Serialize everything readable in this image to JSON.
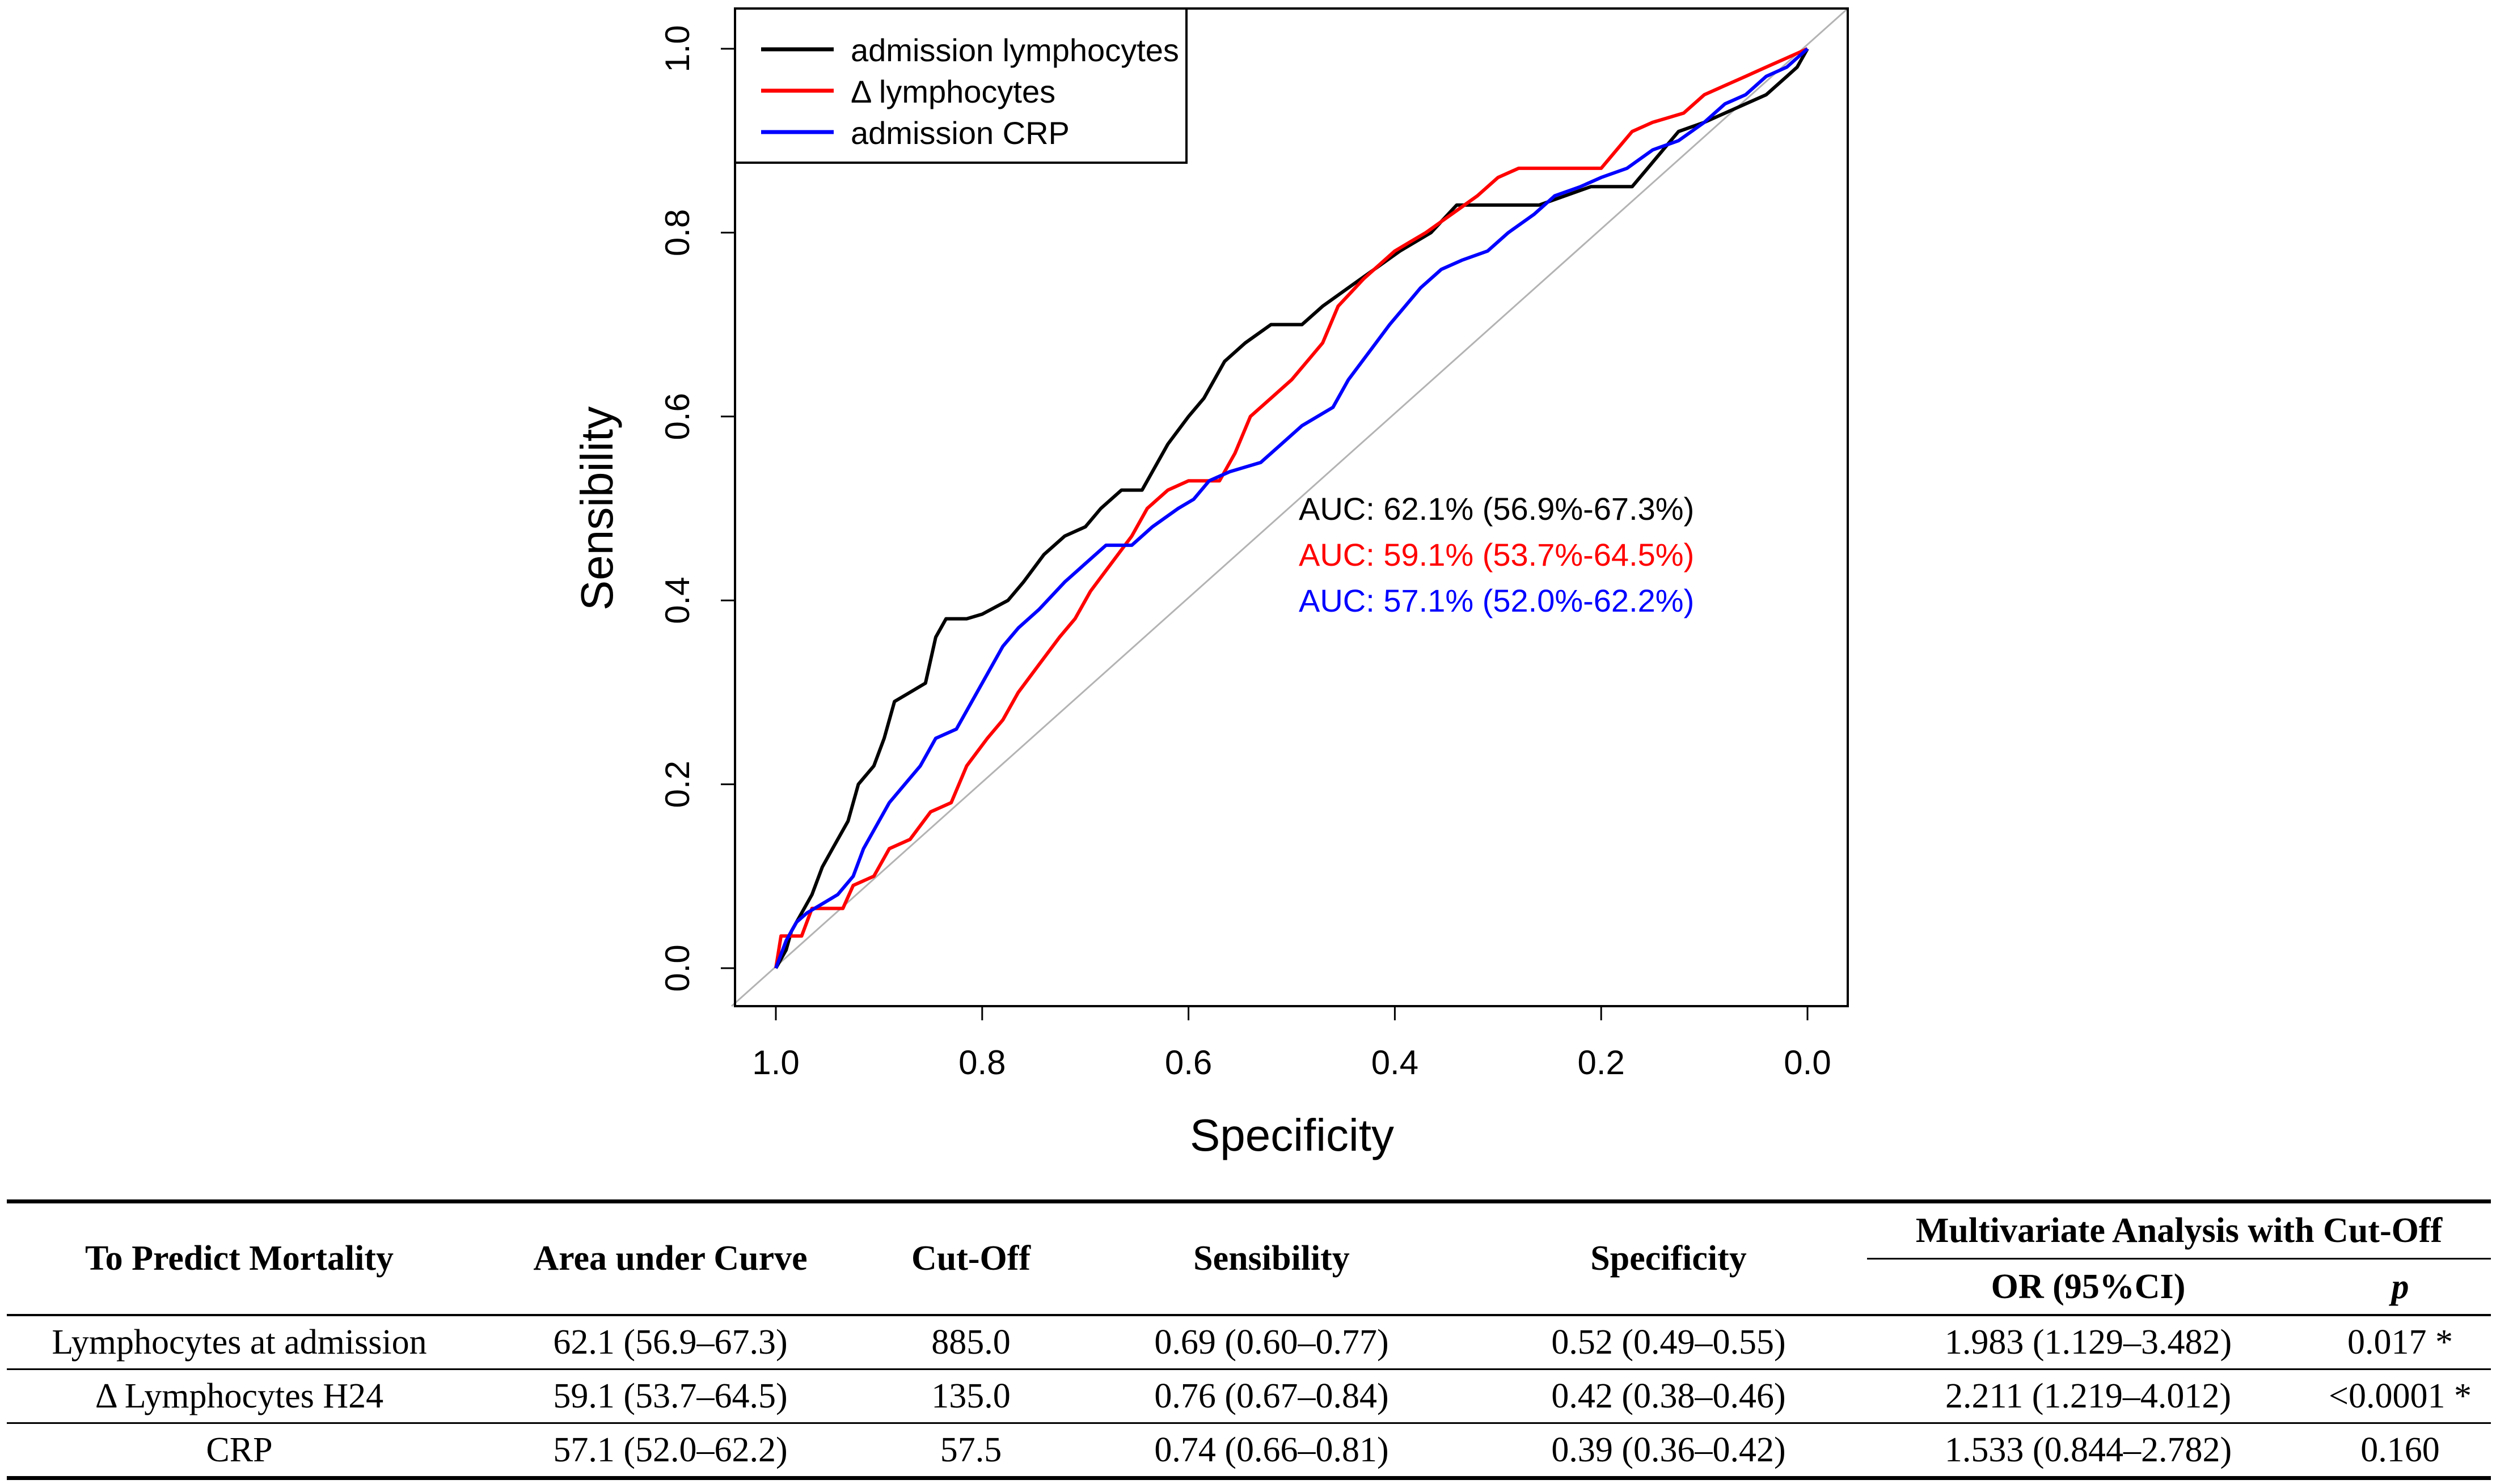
{
  "chart_data": {
    "type": "line",
    "title": "",
    "xlabel": "Specificity",
    "ylabel": "Sensibility",
    "xlim": [
      1.0,
      0.0
    ],
    "ylim": [
      0.0,
      1.0
    ],
    "x_ticks": [
      "1.0",
      "0.8",
      "0.6",
      "0.4",
      "0.2",
      "0.0"
    ],
    "x_tick_values": [
      1.0,
      0.8,
      0.6,
      0.4,
      0.2,
      0.0
    ],
    "y_ticks": [
      "0.0",
      "0.2",
      "0.4",
      "0.6",
      "0.8",
      "1.0"
    ],
    "y_tick_values": [
      0.0,
      0.2,
      0.4,
      0.6,
      0.8,
      1.0
    ],
    "legend_position": "top-left",
    "reference_line": {
      "from": [
        1.0,
        0.0
      ],
      "to": [
        0.0,
        1.0
      ],
      "color": "#b3b3b3"
    },
    "series": [
      {
        "name": "admission lymphocytes",
        "color": "#000000",
        "auc_label": "AUC: 62.1% (56.9%-67.3%)",
        "points": [
          [
            1.0,
            0.0
          ],
          [
            0.99,
            0.02
          ],
          [
            0.985,
            0.04
          ],
          [
            0.975,
            0.06
          ],
          [
            0.965,
            0.08
          ],
          [
            0.955,
            0.11
          ],
          [
            0.945,
            0.13
          ],
          [
            0.93,
            0.16
          ],
          [
            0.92,
            0.2
          ],
          [
            0.905,
            0.22
          ],
          [
            0.895,
            0.25
          ],
          [
            0.885,
            0.29
          ],
          [
            0.87,
            0.3
          ],
          [
            0.855,
            0.31
          ],
          [
            0.845,
            0.36
          ],
          [
            0.835,
            0.38
          ],
          [
            0.815,
            0.38
          ],
          [
            0.8,
            0.385
          ],
          [
            0.775,
            0.4
          ],
          [
            0.76,
            0.42
          ],
          [
            0.74,
            0.45
          ],
          [
            0.72,
            0.47
          ],
          [
            0.7,
            0.48
          ],
          [
            0.685,
            0.5
          ],
          [
            0.665,
            0.52
          ],
          [
            0.645,
            0.52
          ],
          [
            0.62,
            0.57
          ],
          [
            0.6,
            0.6
          ],
          [
            0.585,
            0.62
          ],
          [
            0.565,
            0.66
          ],
          [
            0.545,
            0.68
          ],
          [
            0.52,
            0.7
          ],
          [
            0.49,
            0.7
          ],
          [
            0.47,
            0.72
          ],
          [
            0.445,
            0.74
          ],
          [
            0.42,
            0.76
          ],
          [
            0.395,
            0.78
          ],
          [
            0.365,
            0.8
          ],
          [
            0.34,
            0.83
          ],
          [
            0.3,
            0.83
          ],
          [
            0.26,
            0.83
          ],
          [
            0.21,
            0.85
          ],
          [
            0.17,
            0.85
          ],
          [
            0.155,
            0.87
          ],
          [
            0.14,
            0.89
          ],
          [
            0.125,
            0.91
          ],
          [
            0.1,
            0.92
          ],
          [
            0.08,
            0.93
          ],
          [
            0.06,
            0.94
          ],
          [
            0.04,
            0.95
          ],
          [
            0.02,
            0.97
          ],
          [
            0.01,
            0.98
          ],
          [
            0.0,
            1.0
          ]
        ]
      },
      {
        "name": "Δ lymphocytes",
        "color": "#ff0000",
        "auc_label": "AUC: 59.1% (53.7%-64.5%)",
        "points": [
          [
            1.0,
            0.0
          ],
          [
            0.995,
            0.035
          ],
          [
            0.975,
            0.035
          ],
          [
            0.965,
            0.065
          ],
          [
            0.935,
            0.065
          ],
          [
            0.925,
            0.09
          ],
          [
            0.905,
            0.1
          ],
          [
            0.89,
            0.13
          ],
          [
            0.87,
            0.14
          ],
          [
            0.85,
            0.17
          ],
          [
            0.83,
            0.18
          ],
          [
            0.815,
            0.22
          ],
          [
            0.795,
            0.25
          ],
          [
            0.78,
            0.27
          ],
          [
            0.765,
            0.3
          ],
          [
            0.745,
            0.33
          ],
          [
            0.725,
            0.36
          ],
          [
            0.71,
            0.38
          ],
          [
            0.695,
            0.41
          ],
          [
            0.675,
            0.44
          ],
          [
            0.655,
            0.47
          ],
          [
            0.64,
            0.5
          ],
          [
            0.62,
            0.52
          ],
          [
            0.6,
            0.53
          ],
          [
            0.57,
            0.53
          ],
          [
            0.555,
            0.56
          ],
          [
            0.54,
            0.6
          ],
          [
            0.52,
            0.62
          ],
          [
            0.5,
            0.64
          ],
          [
            0.485,
            0.66
          ],
          [
            0.47,
            0.68
          ],
          [
            0.455,
            0.72
          ],
          [
            0.43,
            0.75
          ],
          [
            0.4,
            0.78
          ],
          [
            0.385,
            0.79
          ],
          [
            0.37,
            0.8
          ],
          [
            0.345,
            0.82
          ],
          [
            0.32,
            0.84
          ],
          [
            0.3,
            0.86
          ],
          [
            0.28,
            0.87
          ],
          [
            0.24,
            0.87
          ],
          [
            0.22,
            0.87
          ],
          [
            0.2,
            0.87
          ],
          [
            0.185,
            0.89
          ],
          [
            0.17,
            0.91
          ],
          [
            0.15,
            0.92
          ],
          [
            0.12,
            0.93
          ],
          [
            0.1,
            0.95
          ],
          [
            0.08,
            0.96
          ],
          [
            0.06,
            0.97
          ],
          [
            0.04,
            0.98
          ],
          [
            0.02,
            0.99
          ],
          [
            0.0,
            1.0
          ]
        ]
      },
      {
        "name": "admission CRP",
        "color": "#0000ff",
        "auc_label": "AUC: 57.1% (52.0%-62.2%)",
        "points": [
          [
            1.0,
            0.0
          ],
          [
            0.99,
            0.03
          ],
          [
            0.98,
            0.05
          ],
          [
            0.97,
            0.06
          ],
          [
            0.955,
            0.07
          ],
          [
            0.94,
            0.08
          ],
          [
            0.925,
            0.1
          ],
          [
            0.915,
            0.13
          ],
          [
            0.905,
            0.15
          ],
          [
            0.89,
            0.18
          ],
          [
            0.875,
            0.2
          ],
          [
            0.86,
            0.22
          ],
          [
            0.845,
            0.25
          ],
          [
            0.825,
            0.26
          ],
          [
            0.81,
            0.29
          ],
          [
            0.795,
            0.32
          ],
          [
            0.78,
            0.35
          ],
          [
            0.765,
            0.37
          ],
          [
            0.745,
            0.39
          ],
          [
            0.72,
            0.42
          ],
          [
            0.7,
            0.44
          ],
          [
            0.68,
            0.46
          ],
          [
            0.655,
            0.46
          ],
          [
            0.635,
            0.48
          ],
          [
            0.61,
            0.5
          ],
          [
            0.595,
            0.51
          ],
          [
            0.58,
            0.53
          ],
          [
            0.56,
            0.54
          ],
          [
            0.53,
            0.55
          ],
          [
            0.51,
            0.57
          ],
          [
            0.49,
            0.59
          ],
          [
            0.46,
            0.61
          ],
          [
            0.445,
            0.64
          ],
          [
            0.425,
            0.67
          ],
          [
            0.405,
            0.7
          ],
          [
            0.39,
            0.72
          ],
          [
            0.375,
            0.74
          ],
          [
            0.355,
            0.76
          ],
          [
            0.335,
            0.77
          ],
          [
            0.31,
            0.78
          ],
          [
            0.29,
            0.8
          ],
          [
            0.265,
            0.82
          ],
          [
            0.245,
            0.84
          ],
          [
            0.22,
            0.85
          ],
          [
            0.2,
            0.86
          ],
          [
            0.175,
            0.87
          ],
          [
            0.15,
            0.89
          ],
          [
            0.125,
            0.9
          ],
          [
            0.1,
            0.92
          ],
          [
            0.08,
            0.94
          ],
          [
            0.06,
            0.95
          ],
          [
            0.04,
            0.97
          ],
          [
            0.02,
            0.98
          ],
          [
            0.0,
            1.0
          ]
        ]
      }
    ]
  },
  "table": {
    "headers": {
      "predict": "To Predict Mortality",
      "auc": "Area under Curve",
      "cutoff": "Cut-Off",
      "sensibility": "Sensibility",
      "specificity": "Specificity",
      "multivariate": "Multivariate Analysis with Cut-Off",
      "or": "OR (95%CI)",
      "p": "p"
    },
    "rows": [
      {
        "label": "Lymphocytes at admission",
        "auc": "62.1 (56.9–67.3)",
        "cutoff": "885.0",
        "sensibility": "0.69 (0.60–0.77)",
        "specificity": "0.52 (0.49–0.55)",
        "or": "1.983 (1.129–3.482)",
        "p": "0.017 *"
      },
      {
        "label": "Δ Lymphocytes H24",
        "auc": "59.1 (53.7–64.5)",
        "cutoff": "135.0",
        "sensibility": "0.76 (0.67–0.84)",
        "specificity": "0.42 (0.38–0.46)",
        "or": "2.211 (1.219–4.012)",
        "p": "<0.0001 *"
      },
      {
        "label": "CRP",
        "auc": "57.1 (52.0–62.2)",
        "cutoff": "57.5",
        "sensibility": "0.74 (0.66–0.81)",
        "specificity": "0.39 (0.36–0.42)",
        "or": "1.533 (0.844–2.782)",
        "p": "0.160"
      }
    ]
  }
}
